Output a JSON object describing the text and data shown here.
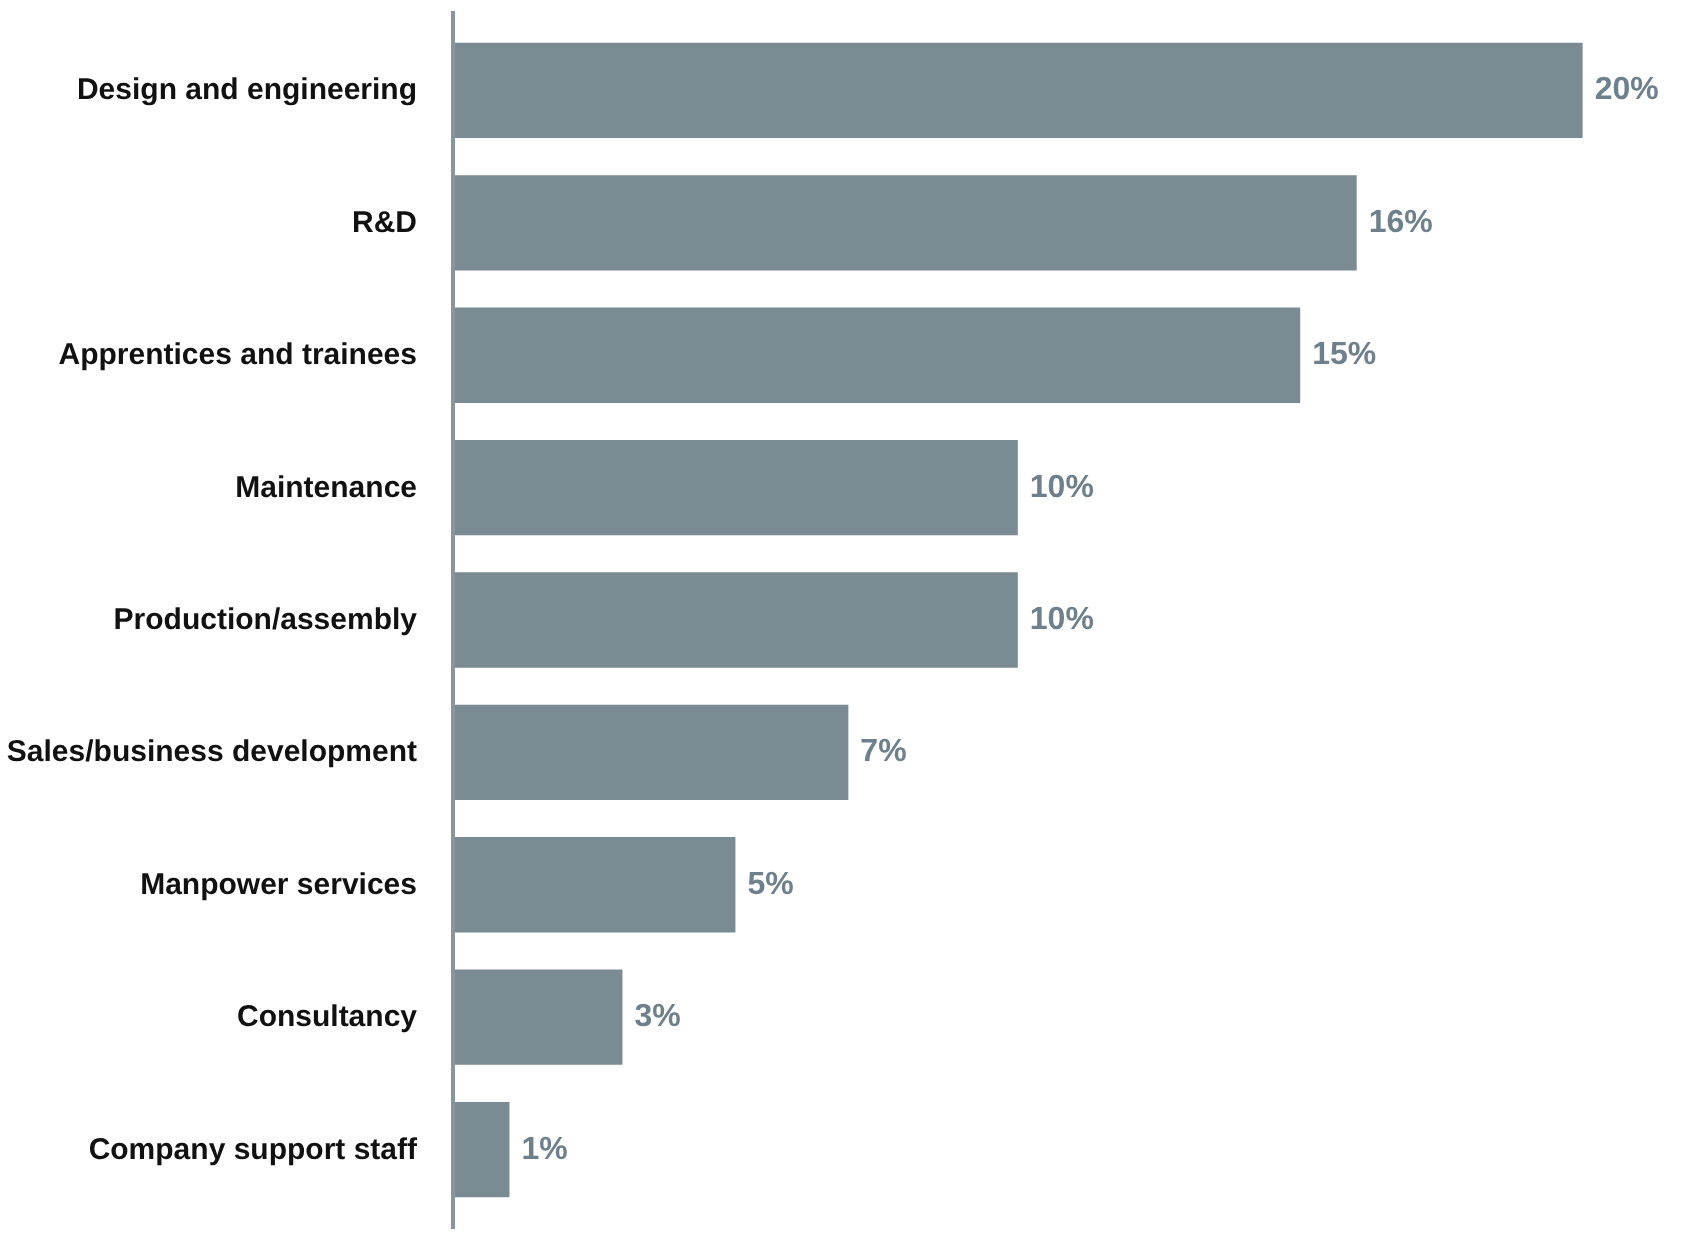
{
  "chart_data": {
    "type": "bar",
    "orientation": "horizontal",
    "categories": [
      "Design and engineering",
      "R&D",
      "Apprentices and trainees",
      "Maintenance",
      "Production/assembly",
      "Sales/business development",
      "Manpower services",
      "Consultancy",
      "Company support staff"
    ],
    "values": [
      20,
      16,
      15,
      10,
      10,
      7,
      5,
      3,
      1
    ],
    "value_labels": [
      "20%",
      "16%",
      "15%",
      "10%",
      "10%",
      "7%",
      "5%",
      "3%",
      "1%"
    ],
    "color": "#7b8b93"
  }
}
